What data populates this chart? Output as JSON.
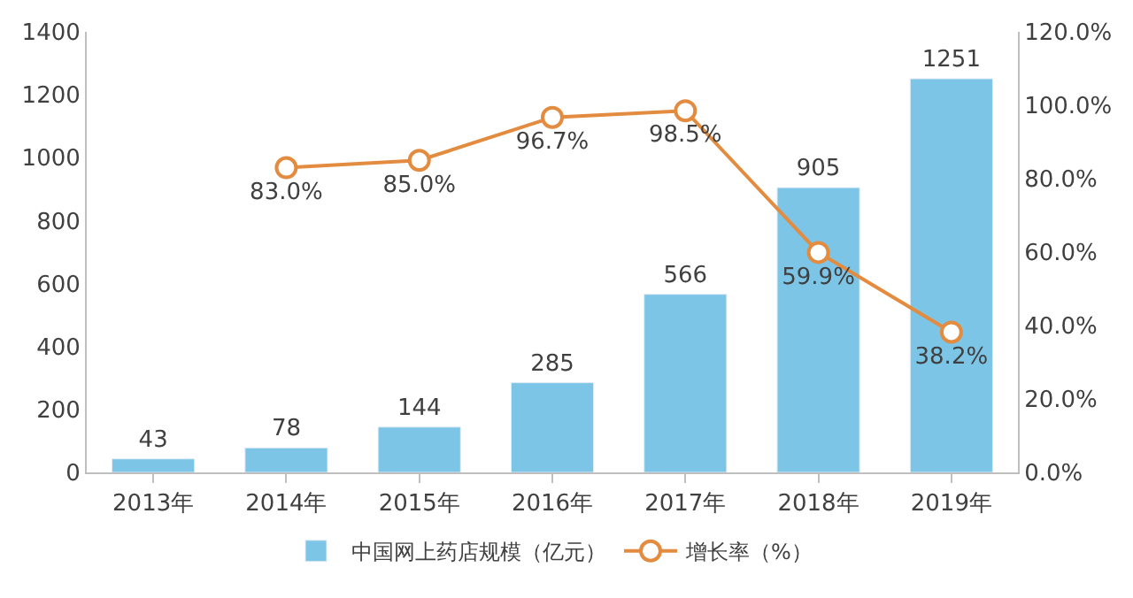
{
  "chart_data": {
    "type": "bar",
    "categories": [
      "2013年",
      "2014年",
      "2015年",
      "2016年",
      "2017年",
      "2018年",
      "2019年"
    ],
    "series": [
      {
        "name": "中国网上药店规模（亿元）",
        "color": "#7cc5e6",
        "values": [
          43,
          78,
          144,
          285,
          566,
          905,
          1251
        ],
        "value_labels": [
          "43",
          "78",
          "144",
          "285",
          "566",
          "905",
          "1251"
        ]
      },
      {
        "name": "增长率（%）",
        "type": "line",
        "axis": "y2",
        "color": "#e38b3f",
        "marker": "circle",
        "values": [
          null,
          83.0,
          85.0,
          96.7,
          98.5,
          59.9,
          38.2
        ],
        "value_labels": [
          null,
          "83.0%",
          "85.0%",
          "96.7%",
          "98.5%",
          "59.9%",
          "38.2%"
        ]
      }
    ],
    "ylim": [
      0,
      1400
    ],
    "yticks": [
      0,
      200,
      400,
      600,
      800,
      1000,
      1200,
      1400
    ],
    "y2lim": [
      0,
      120
    ],
    "y2ticks": [
      {
        "value": 0,
        "label": "0.0%"
      },
      {
        "value": 20,
        "label": "20.0%"
      },
      {
        "value": 40,
        "label": "40.0%"
      },
      {
        "value": 60,
        "label": "60.0%"
      },
      {
        "value": 80,
        "label": "80.0%"
      },
      {
        "value": 100,
        "label": "100.0%"
      },
      {
        "value": 120,
        "label": "120.0%"
      }
    ],
    "legend": "bottom"
  }
}
